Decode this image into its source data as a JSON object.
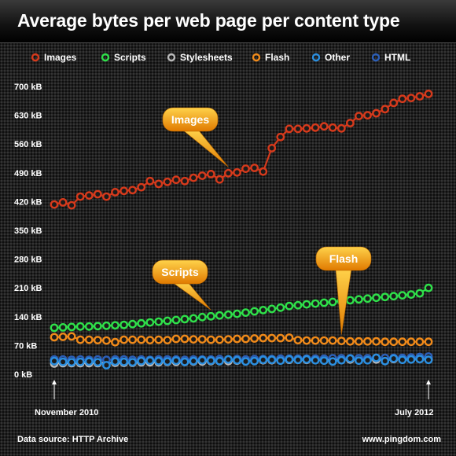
{
  "chart_data": {
    "type": "line",
    "title": "Average bytes per web page per content type",
    "ylabel": "",
    "xlabel": "",
    "ylim": [
      0,
      700
    ],
    "yticks": [
      "0 kB",
      "70 kB",
      "140 kB",
      "210 kB",
      "280 kB",
      "350 kB",
      "420 kB",
      "490 kB",
      "560 kB",
      "630 kB",
      "700 kB"
    ],
    "x_start_label": "November 2010",
    "x_end_label": "July 2012",
    "legend_position": "top",
    "grid": false,
    "series": [
      {
        "name": "Images",
        "color": "#d63a1c",
        "values": [
          413,
          418,
          411,
          432,
          435,
          438,
          432,
          443,
          446,
          448,
          455,
          470,
          463,
          468,
          473,
          470,
          478,
          483,
          487,
          474,
          489,
          491,
          500,
          502,
          493,
          550,
          577,
          597,
          597,
          598,
          600,
          603,
          600,
          598,
          611,
          628,
          630,
          635,
          645,
          660,
          670,
          672,
          676,
          682
        ]
      },
      {
        "name": "Scripts",
        "color": "#2fe04a",
        "values": [
          113,
          114,
          115,
          116,
          116,
          117,
          118,
          119,
          120,
          122,
          124,
          126,
          128,
          130,
          132,
          134,
          136,
          139,
          141,
          143,
          145,
          147,
          150,
          153,
          156,
          159,
          162,
          166,
          168,
          170,
          172,
          174,
          176,
          178,
          180,
          182,
          184,
          186,
          188,
          190,
          192,
          194,
          197,
          210
        ]
      },
      {
        "name": "Stylesheets",
        "color": "#bbbbbb",
        "values": [
          26,
          27,
          27,
          27,
          27,
          27,
          27,
          28,
          28,
          28,
          29,
          29,
          29,
          30,
          30,
          30,
          31,
          31,
          32,
          32,
          32,
          33,
          33,
          33,
          34,
          34,
          34,
          35,
          35,
          35,
          35,
          35,
          35,
          36,
          36,
          36,
          36,
          36,
          37,
          37,
          37,
          37,
          37,
          37
        ]
      },
      {
        "name": "Flash",
        "color": "#f08a1a",
        "values": [
          90,
          91,
          92,
          84,
          84,
          83,
          82,
          78,
          84,
          84,
          84,
          83,
          84,
          83,
          86,
          86,
          85,
          85,
          84,
          84,
          85,
          86,
          86,
          87,
          88,
          88,
          88,
          89,
          83,
          82,
          82,
          82,
          82,
          81,
          80,
          80,
          80,
          80,
          79,
          79,
          79,
          79,
          79,
          79
        ]
      },
      {
        "name": "Other",
        "color": "#2b8fe0",
        "values": [
          32,
          30,
          29,
          30,
          31,
          29,
          22,
          31,
          30,
          29,
          32,
          33,
          32,
          31,
          33,
          30,
          32,
          34,
          33,
          32,
          36,
          34,
          31,
          32,
          35,
          35,
          33,
          36,
          35,
          36,
          34,
          33,
          31,
          34,
          38,
          33,
          34,
          40,
          32,
          38,
          35,
          36,
          37,
          35
        ]
      },
      {
        "name": "HTML",
        "color": "#2c5fb8",
        "values": [
          36,
          36,
          35,
          36,
          35,
          36,
          35,
          36,
          36,
          35,
          36,
          35,
          36,
          36,
          36,
          35,
          36,
          36,
          36,
          37,
          36,
          37,
          36,
          37,
          37,
          37,
          38,
          38,
          38,
          38,
          38,
          38,
          39,
          39,
          39,
          39,
          39,
          40,
          40,
          40,
          40,
          41,
          42,
          43
        ]
      }
    ],
    "annotations": [
      {
        "text": "Images",
        "series": "Images"
      },
      {
        "text": "Scripts",
        "series": "Scripts"
      },
      {
        "text": "Flash",
        "series": "Flash"
      }
    ]
  },
  "footer": {
    "source": "Data source: HTTP Archive",
    "site": "www.pingdom.com"
  }
}
